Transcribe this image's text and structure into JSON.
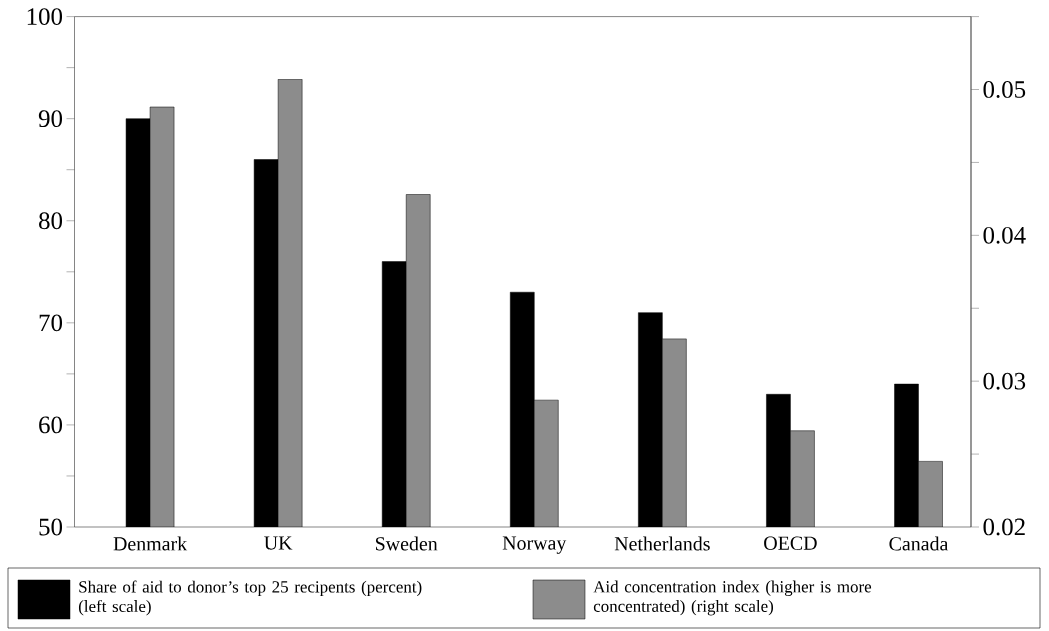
{
  "chart_data": {
    "type": "bar",
    "categories": [
      "Denmark",
      "UK",
      "Sweden",
      "Norway",
      "Netherlands",
      "OECD",
      "Canada"
    ],
    "series": [
      {
        "name": "Share of aid to donor’s top 25 recipents (percent) (left scale)",
        "color": "#000000",
        "values": [
          90,
          86,
          76,
          73,
          71,
          63,
          64
        ]
      },
      {
        "name": "Aid concentration index (higher is more concentrated) (right scale)",
        "color": "#8c8c8c",
        "axis": "y2",
        "values": [
          0.0488,
          0.0507,
          0.0428,
          0.0287,
          0.0329,
          0.0266,
          0.0245
        ]
      }
    ],
    "ylim": [
      50,
      100
    ],
    "yticks": [
      50,
      {
        "value": 55,
        "label": null
      },
      60,
      {
        "value": 65,
        "label": null
      },
      70,
      {
        "value": 75,
        "label": null
      },
      80,
      {
        "value": 85,
        "label": null
      },
      90,
      {
        "value": 95,
        "label": null
      },
      100
    ],
    "y2lim": [
      0.02,
      0.055
    ],
    "y2ticks": [
      0.02,
      {
        "value": 0.025,
        "label": null
      },
      0.03,
      {
        "value": 0.035,
        "label": null
      },
      0.04,
      {
        "value": 0.045,
        "label": null
      },
      0.05,
      {
        "value": 0.055,
        "label": null
      }
    ],
    "legend": "bottom"
  }
}
